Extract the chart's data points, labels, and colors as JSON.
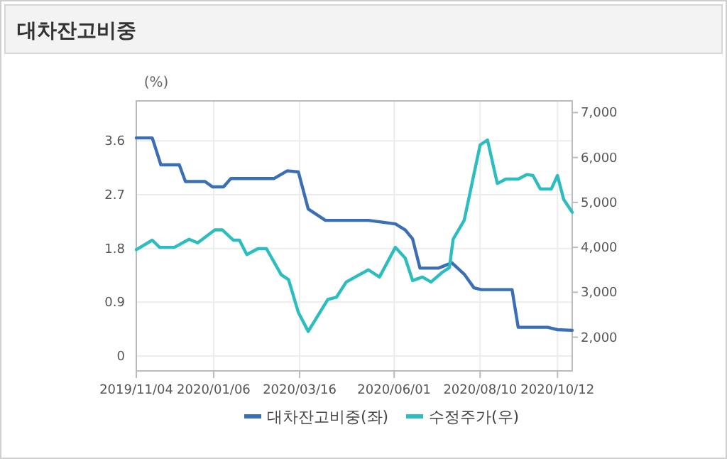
{
  "chart_data": {
    "type": "line",
    "title": "대차잔고비중",
    "ylabel": "(%)",
    "xlim": [
      "2019-11-04",
      "2020-10-24"
    ],
    "xticks": [
      {
        "value": "2019-11-04",
        "label": "2019/11/04"
      },
      {
        "value": "2020-01-06",
        "label": "2020/01/06"
      },
      {
        "value": "2020-03-16",
        "label": "2020/03/16"
      },
      {
        "value": "2020-06-01",
        "label": "2020/06/01"
      },
      {
        "value": "2020-08-10",
        "label": "2020/08/10"
      },
      {
        "value": "2020-10-12",
        "label": "2020/10/12"
      }
    ],
    "ylim": [
      -0.25,
      4.27
    ],
    "yticks": [
      0,
      0.9,
      1.8,
      2.7,
      3.6
    ],
    "y2lim": [
      1250,
      7260
    ],
    "y2ticks": [
      {
        "value": 2000,
        "label": "2,000"
      },
      {
        "value": 3000,
        "label": "3,000"
      },
      {
        "value": 4000,
        "label": "4,000"
      },
      {
        "value": 5000,
        "label": "5,000"
      },
      {
        "value": 6000,
        "label": "6,000"
      },
      {
        "value": 7000,
        "label": "7,000"
      }
    ],
    "grid": true,
    "legend": "bottom",
    "marker": "none",
    "line_style": "solid",
    "series": [
      {
        "name": "대차잔고비중(좌)",
        "color": "#3a6fb5",
        "x": [
          "2019-11-04",
          "2019-11-17",
          "2019-11-24",
          "2019-12-09",
          "2019-12-14",
          "2019-12-30",
          "2020-01-05",
          "2020-01-14",
          "2020-01-20",
          "2020-02-24",
          "2020-03-06",
          "2020-03-15",
          "2020-03-23",
          "2020-04-06",
          "2020-05-11",
          "2020-06-02",
          "2020-06-10",
          "2020-06-16",
          "2020-06-22",
          "2020-07-07",
          "2020-07-18",
          "2020-07-28",
          "2020-08-05",
          "2020-08-11",
          "2020-09-05",
          "2020-09-10",
          "2020-10-04",
          "2020-10-12",
          "2020-10-24"
        ],
        "values": [
          3.65,
          3.65,
          3.2,
          3.2,
          2.92,
          2.92,
          2.83,
          2.83,
          2.97,
          2.97,
          3.1,
          3.08,
          2.46,
          2.27,
          2.27,
          2.21,
          2.11,
          1.96,
          1.47,
          1.47,
          1.56,
          1.37,
          1.14,
          1.11,
          1.11,
          0.48,
          0.48,
          0.44,
          0.43
        ]
      },
      {
        "name": "수정주가(우)",
        "color": "#2bbdc0",
        "axis": "y2",
        "x": [
          "2019-11-04",
          "2019-11-17",
          "2019-11-23",
          "2019-12-05",
          "2019-12-17",
          "2019-12-24",
          "2020-01-07",
          "2020-01-13",
          "2020-01-22",
          "2020-01-27",
          "2020-02-02",
          "2020-02-11",
          "2020-02-18",
          "2020-03-01",
          "2020-03-07",
          "2020-03-15",
          "2020-03-23",
          "2020-04-08",
          "2020-04-15",
          "2020-04-23",
          "2020-05-11",
          "2020-05-20",
          "2020-06-02",
          "2020-06-10",
          "2020-06-16",
          "2020-06-24",
          "2020-07-01",
          "2020-07-10",
          "2020-07-16",
          "2020-07-19",
          "2020-07-28",
          "2020-08-10",
          "2020-08-16",
          "2020-08-24",
          "2020-08-31",
          "2020-09-10",
          "2020-09-17",
          "2020-09-22",
          "2020-09-28",
          "2020-10-07",
          "2020-10-12",
          "2020-10-17",
          "2020-10-24"
        ],
        "values": [
          3950,
          4160,
          4000,
          4000,
          4180,
          4100,
          4390,
          4390,
          4160,
          4160,
          3840,
          3970,
          3970,
          3390,
          3280,
          2550,
          2130,
          2840,
          2890,
          3230,
          3500,
          3340,
          4000,
          3760,
          3260,
          3340,
          3230,
          3440,
          3550,
          4180,
          4600,
          6280,
          6390,
          5420,
          5520,
          5520,
          5620,
          5600,
          5300,
          5300,
          5600,
          5070,
          4780
        ]
      }
    ]
  }
}
